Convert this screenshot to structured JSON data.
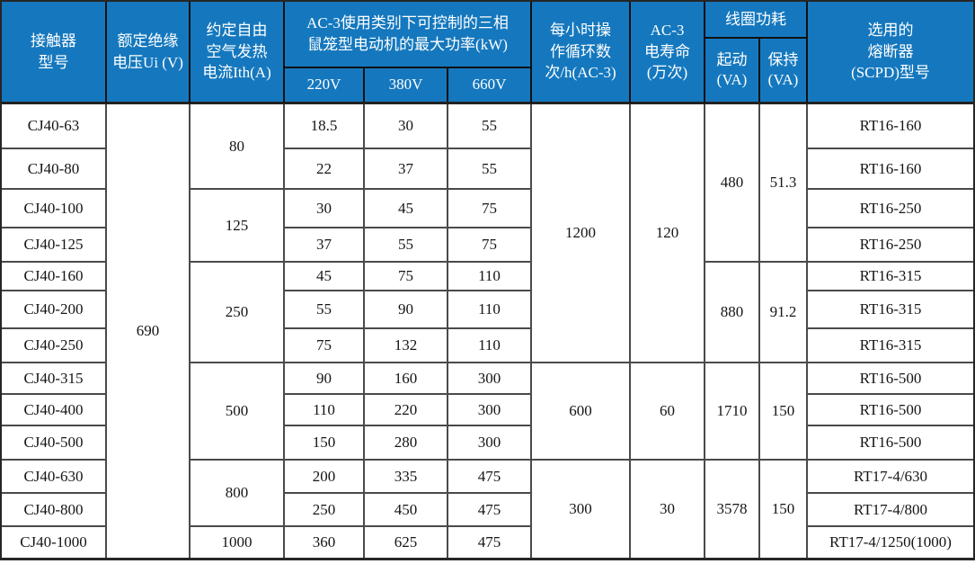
{
  "colors": {
    "header_bg": "#1578be",
    "header_text": "#ffffff",
    "header_border": "#101010",
    "body_border": "#4a4a4a",
    "body_text": "#151515"
  },
  "header": {
    "model": "接触器\n型号",
    "ui": "额定绝缘\n电压Ui (V)",
    "ith": "约定自由\n空气发热\n电流Ith(A)",
    "power_group": "AC-3使用类别下可控制的三相\n鼠笼型电动机的最大功率(kW)",
    "v220": "220V",
    "v380": "380V",
    "v660": "660V",
    "cycles": "每小时操\n作循环数\n次/h(AC-3)",
    "life": "AC-3\n电寿命\n(万次)",
    "coil": "线圈功耗",
    "coil_start": "起动\n(VA)",
    "coil_hold": "保持\n(VA)",
    "fuse": "选用的\n熔断器\n(SCPD)型号"
  },
  "rows": [
    {
      "model": "CJ40-63",
      "p220": "18.5",
      "p380": "30",
      "p660": "55",
      "fuse": "RT16-160"
    },
    {
      "model": "CJ40-80",
      "p220": "22",
      "p380": "37",
      "p660": "55",
      "fuse": "RT16-160"
    },
    {
      "model": "CJ40-100",
      "p220": "30",
      "p380": "45",
      "p660": "75",
      "fuse": "RT16-250"
    },
    {
      "model": "CJ40-125",
      "p220": "37",
      "p380": "55",
      "p660": "75",
      "fuse": "RT16-250"
    },
    {
      "model": "CJ40-160",
      "p220": "45",
      "p380": "75",
      "p660": "110",
      "fuse": "RT16-315"
    },
    {
      "model": "CJ40-200",
      "p220": "55",
      "p380": "90",
      "p660": "110",
      "fuse": "RT16-315"
    },
    {
      "model": "CJ40-250",
      "p220": "75",
      "p380": "132",
      "p660": "110",
      "fuse": "RT16-315"
    },
    {
      "model": "CJ40-315",
      "p220": "90",
      "p380": "160",
      "p660": "300",
      "fuse": "RT16-500"
    },
    {
      "model": "CJ40-400",
      "p220": "110",
      "p380": "220",
      "p660": "300",
      "fuse": "RT16-500"
    },
    {
      "model": "CJ40-500",
      "p220": "150",
      "p380": "280",
      "p660": "300",
      "fuse": "RT16-500"
    },
    {
      "model": "CJ40-630",
      "p220": "200",
      "p380": "335",
      "p660": "475",
      "fuse": "RT17-4/630"
    },
    {
      "model": "CJ40-800",
      "p220": "250",
      "p380": "450",
      "p660": "475",
      "fuse": "RT17-4/800"
    },
    {
      "model": "CJ40-1000",
      "p220": "360",
      "p380": "625",
      "p660": "475",
      "fuse": "RT17-4/1250(1000)"
    }
  ],
  "merged": {
    "ui": "690",
    "ith": [
      {
        "value": "80",
        "span": 2
      },
      {
        "value": "125",
        "span": 2
      },
      {
        "value": "250",
        "span": 3
      },
      {
        "value": "500",
        "span": 3
      },
      {
        "value": "800",
        "span": 2
      },
      {
        "value": "1000",
        "span": 1
      }
    ],
    "cycles": [
      {
        "value": "1200",
        "span": 7
      },
      {
        "value": "600",
        "span": 3
      },
      {
        "value": "300",
        "span": 3
      }
    ],
    "life": [
      {
        "value": "120",
        "span": 7
      },
      {
        "value": "60",
        "span": 3
      },
      {
        "value": "30",
        "span": 3
      }
    ],
    "start": [
      {
        "value": "480",
        "span": 4
      },
      {
        "value": "880",
        "span": 3
      },
      {
        "value": "1710",
        "span": 3
      },
      {
        "value": "3578",
        "span": 3
      }
    ],
    "hold": [
      {
        "value": "51.3",
        "span": 4
      },
      {
        "value": "91.2",
        "span": 3
      },
      {
        "value": "150",
        "span": 3
      },
      {
        "value": "150",
        "span": 3
      }
    ]
  }
}
